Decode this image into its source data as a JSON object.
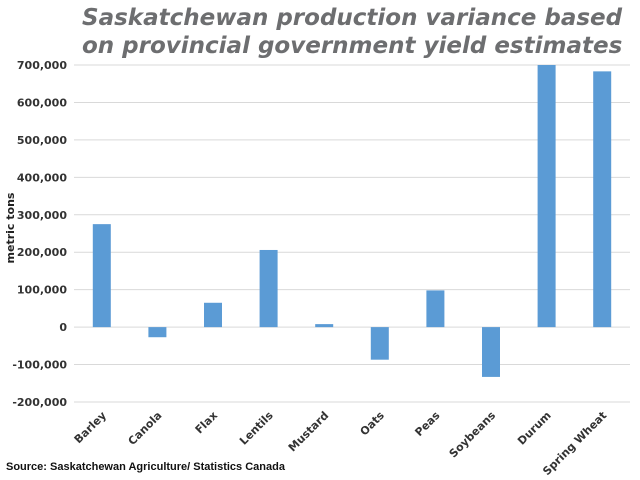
{
  "chart_data": {
    "type": "bar",
    "title_lines": [
      "Saskatchewan production variance based",
      "on provincial government yield estimates"
    ],
    "xlabel": "",
    "ylabel": "metric tons",
    "categories": [
      "Barley",
      "Canola",
      "Flax",
      "Lentils",
      "Mustard",
      "Oats",
      "Peas",
      "Soybeans",
      "Durum",
      "Spring Wheat"
    ],
    "values": [
      275000,
      -27000,
      65000,
      206000,
      8000,
      -87000,
      98000,
      -133000,
      700000,
      683000
    ],
    "ylim": [
      -200000,
      700000
    ],
    "yticks": [
      -200000,
      -100000,
      0,
      100000,
      200000,
      300000,
      400000,
      500000,
      600000,
      700000
    ],
    "ytick_labels": [
      "-200,000",
      "-100,000",
      "0",
      "100,000",
      "200,000",
      "300,000",
      "400,000",
      "500,000",
      "600,000",
      "700,000"
    ],
    "grid": true,
    "legend": "none",
    "bar_color": "#5b9bd5",
    "source": "Source: Saskatchewan Agriculture/ Statistics Canada"
  }
}
